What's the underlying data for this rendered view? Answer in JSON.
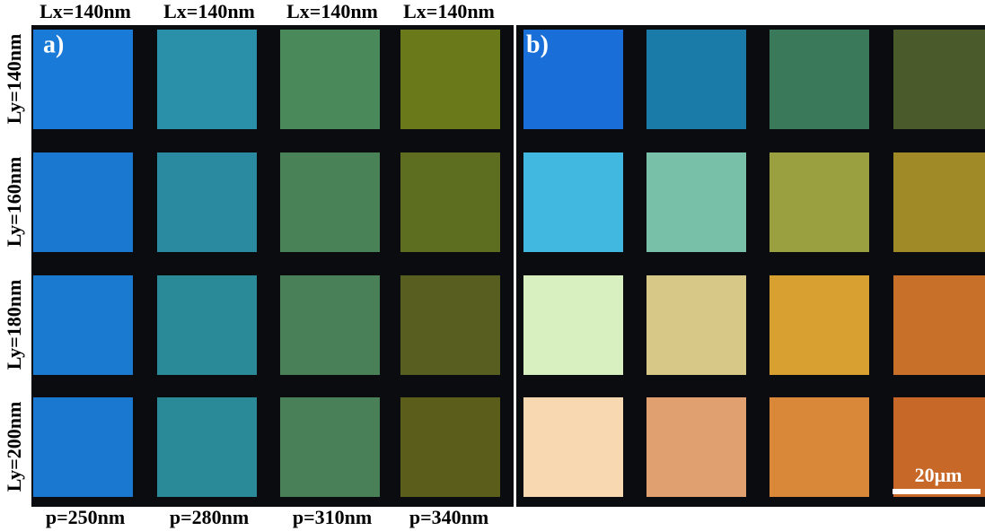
{
  "column_labels": [
    "Lx=140nm",
    "Lx=140nm",
    "Lx=140nm",
    "Lx=140nm"
  ],
  "row_labels": [
    "Ly=140nm",
    "Ly=160nm",
    "Ly=180nm",
    "Ly=200nm"
  ],
  "period_labels": [
    "p=250nm",
    "p=280nm",
    "p=310nm",
    "p=340nm"
  ],
  "panels": [
    {
      "label": "a)"
    },
    {
      "label": "b)"
    }
  ],
  "scale_bar": "20μm"
}
